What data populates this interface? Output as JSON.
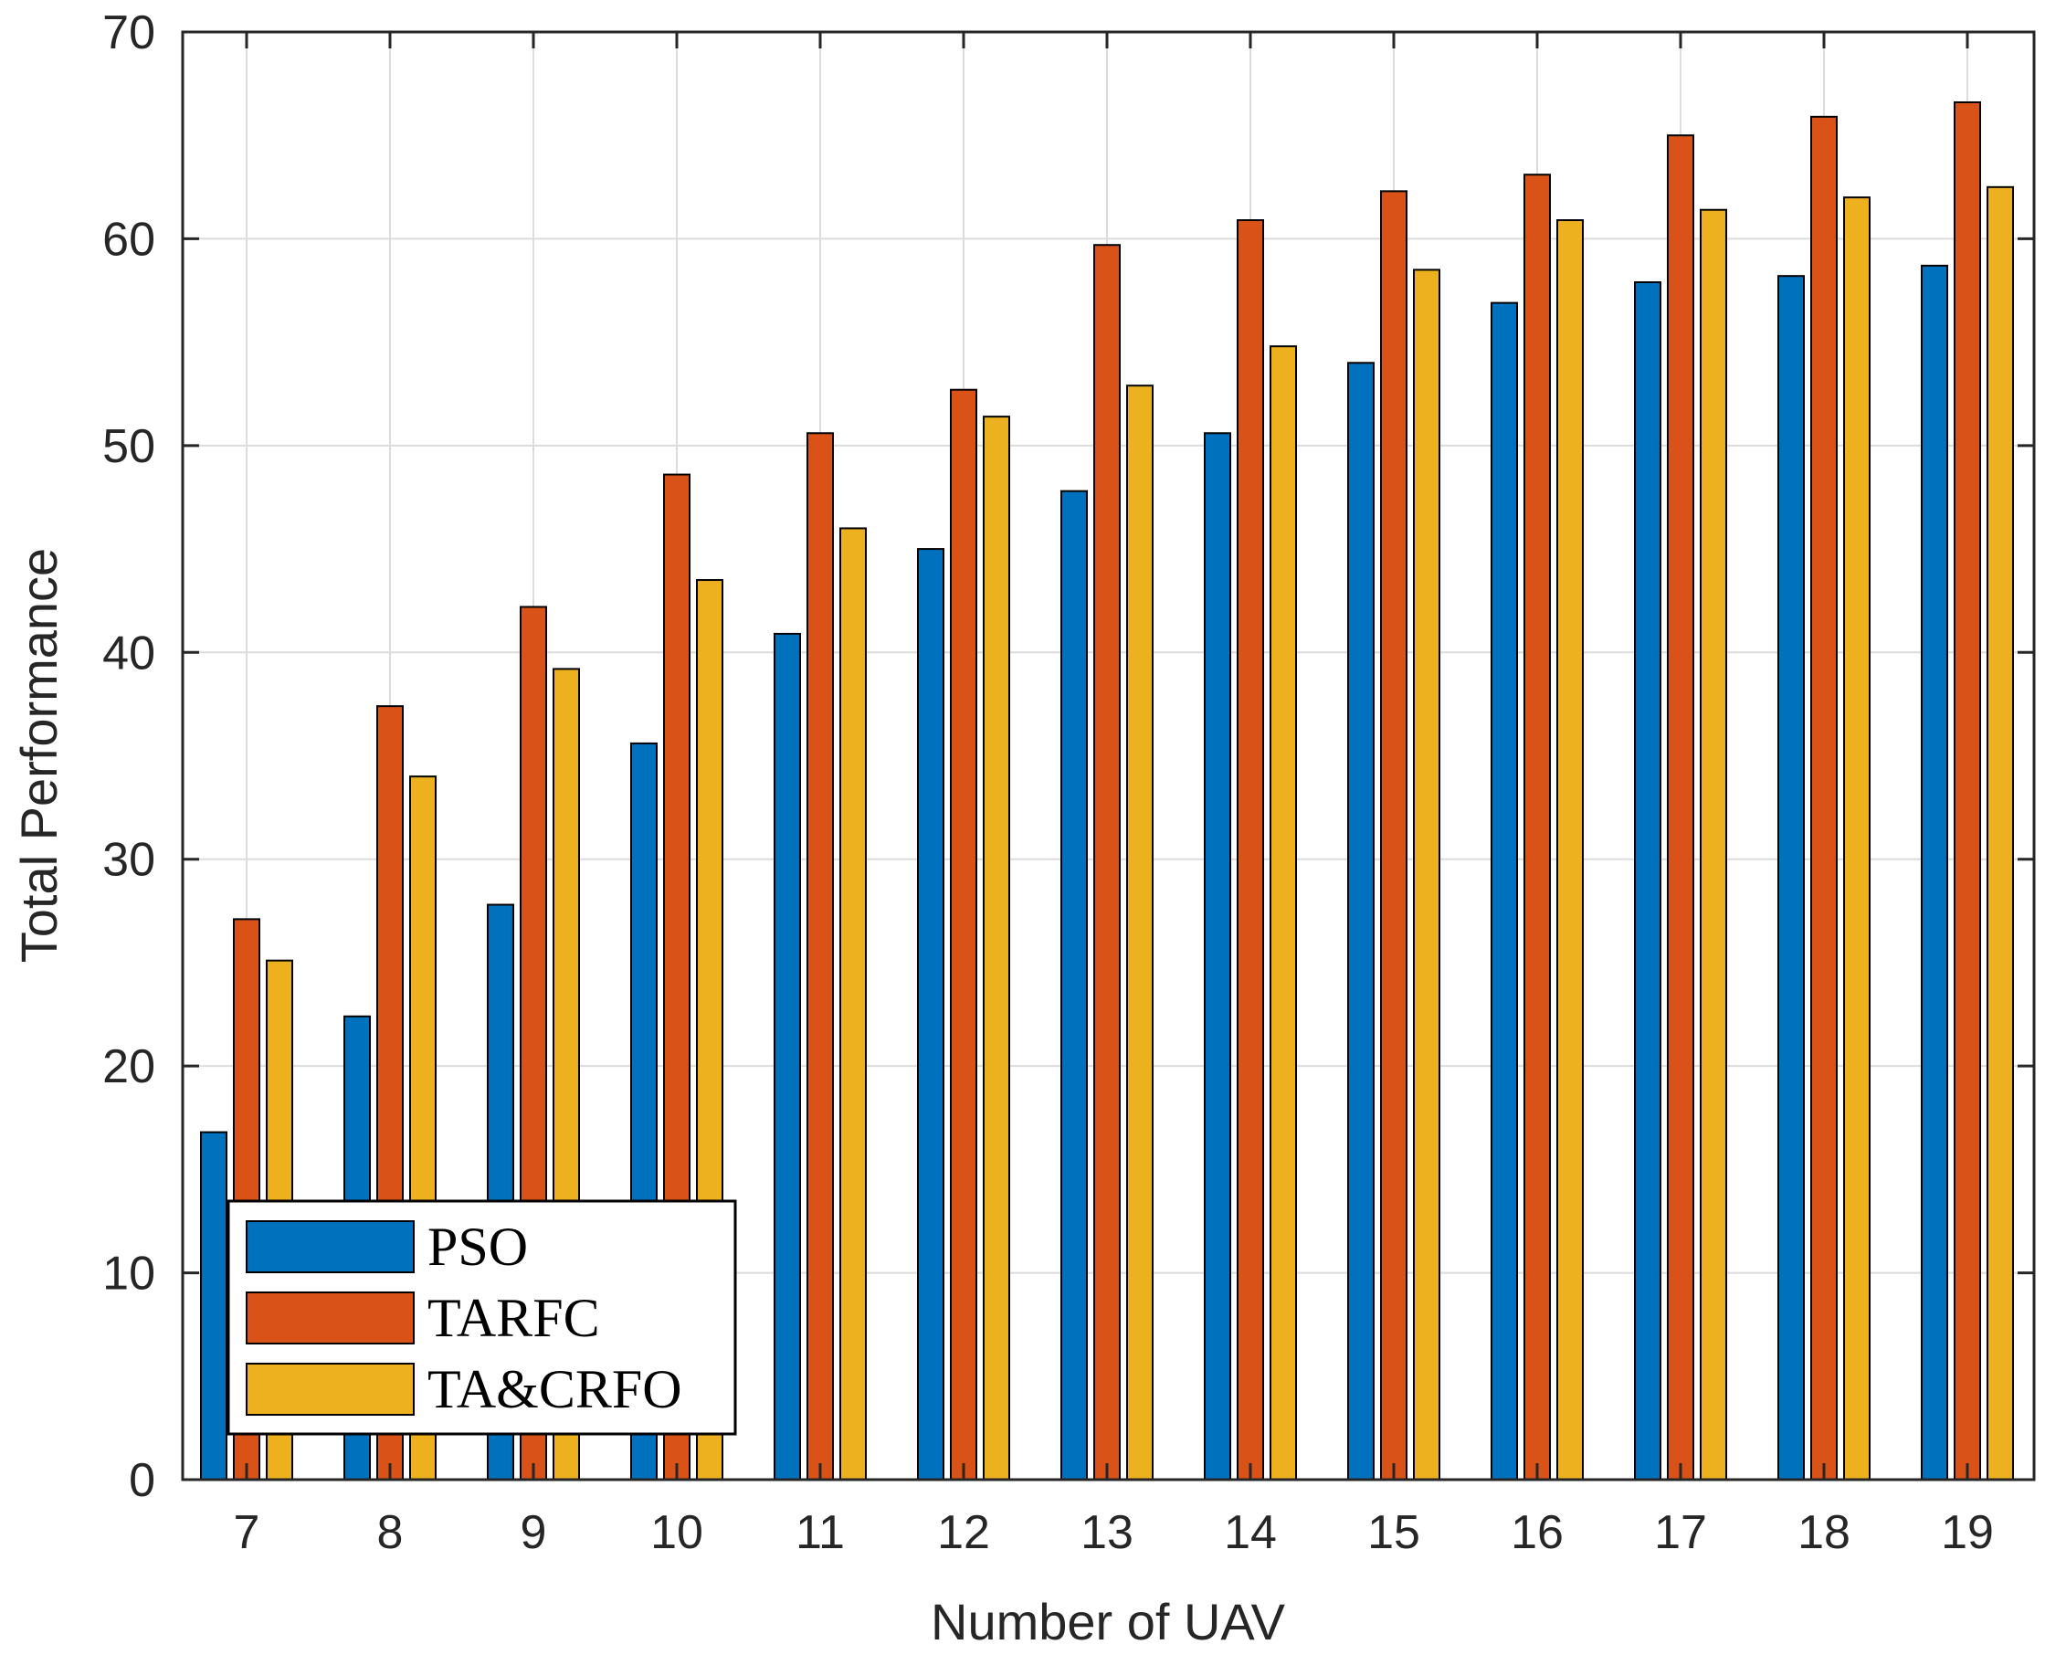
{
  "chart_data": {
    "type": "bar",
    "title": "",
    "xlabel": "Number of UAV",
    "ylabel": "Total Performance",
    "ylim": [
      0,
      70
    ],
    "yticks": [
      "0",
      "10",
      "20",
      "30",
      "40",
      "50",
      "60",
      "70"
    ],
    "categories": [
      "7",
      "8",
      "9",
      "10",
      "11",
      "12",
      "13",
      "14",
      "15",
      "16",
      "17",
      "18",
      "19"
    ],
    "grid": true,
    "legend_position": "bottom-left",
    "series": [
      {
        "name": "PSO",
        "color": "#0072BD",
        "values": [
          16.8,
          22.4,
          27.8,
          35.6,
          40.9,
          45.0,
          47.8,
          50.6,
          54.0,
          56.9,
          57.9,
          58.2,
          58.7
        ]
      },
      {
        "name": "TARFC",
        "color": "#D95319",
        "values": [
          27.1,
          37.4,
          42.2,
          48.6,
          50.6,
          52.7,
          59.7,
          60.9,
          62.3,
          63.1,
          65.0,
          65.9,
          66.6
        ]
      },
      {
        "name": "TA&CRFO",
        "color": "#EDB120",
        "values": [
          25.1,
          34.0,
          39.2,
          43.5,
          46.0,
          51.4,
          52.9,
          54.8,
          58.5,
          60.9,
          61.4,
          62.0,
          62.5
        ]
      }
    ]
  }
}
